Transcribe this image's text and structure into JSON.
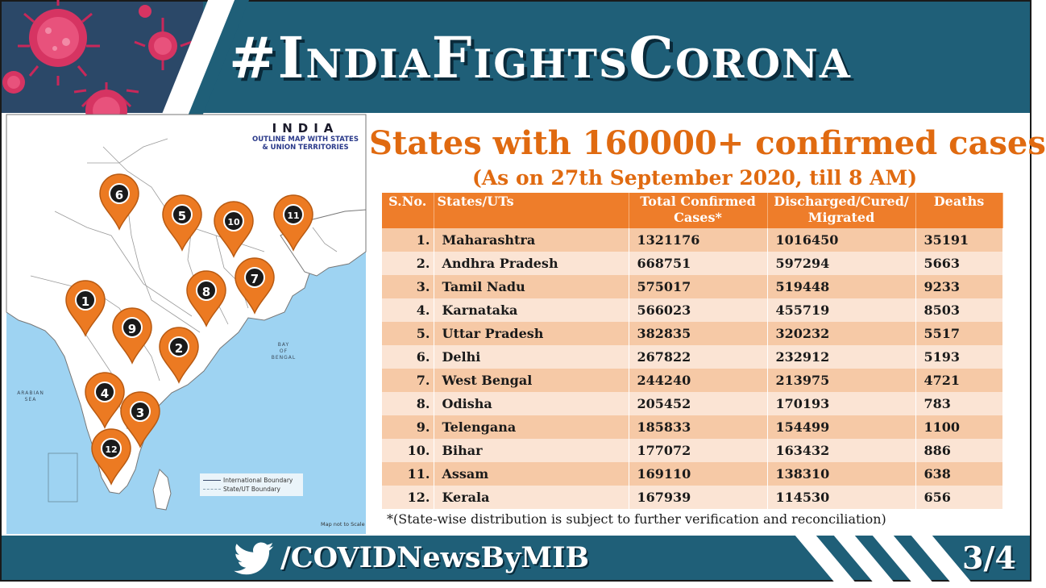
{
  "header": {
    "hashtag": "#IndiaFightsCorona"
  },
  "map": {
    "title": "INDIA",
    "subtitle_line1": "OUTLINE MAP WITH STATES",
    "subtitle_line2": "& UNION TERRITORIES",
    "arabian_sea": "ARABIAN\nSEA",
    "bay_of_bengal": "BAY\nOF\nBENGAL",
    "legend": {
      "international": "International Boundary",
      "state": "State/UT Boundary"
    },
    "scale_note": "Map not to Scale",
    "pins": [
      "1",
      "2",
      "3",
      "4",
      "5",
      "6",
      "7",
      "8",
      "9",
      "10",
      "11",
      "12"
    ],
    "pin_color": "#ec7a22"
  },
  "title": "States with 160000+ confirmed cases",
  "subtitle": "(As on 27th September 2020, till 8 AM)",
  "table": {
    "headers": {
      "sno": "S.No.",
      "state": "States/UTs",
      "total_line1": "Total Confirmed",
      "total_line2": "Cases*",
      "discharged_line1": "Discharged/Cured/",
      "discharged_line2": "Migrated",
      "deaths": "Deaths"
    },
    "rows": [
      {
        "sno": "1.",
        "state": "Maharashtra",
        "total": "1321176",
        "discharged": "1016450",
        "deaths": "35191"
      },
      {
        "sno": "2.",
        "state": "Andhra Pradesh",
        "total": "668751",
        "discharged": "597294",
        "deaths": "5663"
      },
      {
        "sno": "3.",
        "state": "Tamil Nadu",
        "total": "575017",
        "discharged": "519448",
        "deaths": "9233"
      },
      {
        "sno": "4.",
        "state": "Karnataka",
        "total": "566023",
        "discharged": "455719",
        "deaths": "8503"
      },
      {
        "sno": "5.",
        "state": "Uttar Pradesh",
        "total": "382835",
        "discharged": "320232",
        "deaths": "5517"
      },
      {
        "sno": "6.",
        "state": "Delhi",
        "total": "267822",
        "discharged": "232912",
        "deaths": "5193"
      },
      {
        "sno": "7.",
        "state": "West Bengal",
        "total": "244240",
        "discharged": "213975",
        "deaths": "4721"
      },
      {
        "sno": "8.",
        "state": "Odisha",
        "total": "205452",
        "discharged": "170193",
        "deaths": "783"
      },
      {
        "sno": "9.",
        "state": "Telengana",
        "total": "185833",
        "discharged": "154499",
        "deaths": "1100"
      },
      {
        "sno": "10.",
        "state": "Bihar",
        "total": "177072",
        "discharged": "163432",
        "deaths": "886"
      },
      {
        "sno": "11.",
        "state": "Assam",
        "total": "169110",
        "discharged": "138310",
        "deaths": "638"
      },
      {
        "sno": "12.",
        "state": "Kerala",
        "total": "167939",
        "discharged": "114530",
        "deaths": "656"
      }
    ]
  },
  "footnote": "*(State-wise distribution is subject to further verification and reconciliation)",
  "footer": {
    "handle": "/COVIDNewsByMIB",
    "page": "3/4",
    "twitter_icon": "twitter-bird-icon"
  },
  "colors": {
    "banner": "#1f5f78",
    "accent": "#e06a10",
    "table_header": "#ee7d2a",
    "row_dark": "#f6c9a6",
    "row_light": "#fbe4d4",
    "sea": "#9ed3f2"
  }
}
